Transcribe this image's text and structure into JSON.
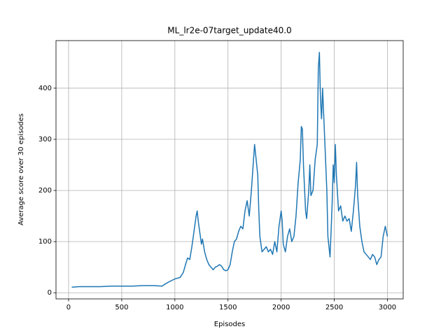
{
  "chart_data": {
    "type": "line",
    "title": "ML_lr2e-07target_update40.0",
    "x_label": "Episodes",
    "y_label": "Average score over 30 episodes",
    "x": [
      30,
      100,
      200,
      300,
      400,
      500,
      600,
      700,
      800,
      880,
      900,
      950,
      1000,
      1050,
      1080,
      1100,
      1120,
      1140,
      1160,
      1180,
      1200,
      1210,
      1220,
      1240,
      1250,
      1260,
      1280,
      1300,
      1320,
      1340,
      1360,
      1380,
      1400,
      1420,
      1440,
      1460,
      1480,
      1500,
      1520,
      1540,
      1560,
      1580,
      1600,
      1620,
      1640,
      1660,
      1680,
      1700,
      1720,
      1740,
      1750,
      1760,
      1780,
      1790,
      1800,
      1820,
      1840,
      1860,
      1880,
      1900,
      1920,
      1940,
      1960,
      1980,
      2000,
      2010,
      2020,
      2040,
      2060,
      2080,
      2100,
      2120,
      2140,
      2160,
      2180,
      2190,
      2200,
      2210,
      2230,
      2240,
      2260,
      2270,
      2280,
      2300,
      2320,
      2340,
      2350,
      2360,
      2370,
      2380,
      2390,
      2400,
      2420,
      2430,
      2440,
      2460,
      2470,
      2480,
      2490,
      2500,
      2510,
      2520,
      2540,
      2560,
      2580,
      2600,
      2620,
      2640,
      2660,
      2680,
      2700,
      2710,
      2720,
      2740,
      2760,
      2780,
      2800,
      2820,
      2840,
      2860,
      2880,
      2900,
      2920,
      2940,
      2960,
      2980,
      3000
    ],
    "values": [
      11,
      12,
      12,
      12,
      13,
      13,
      13,
      14,
      14,
      13,
      16,
      22,
      27,
      30,
      40,
      55,
      68,
      65,
      90,
      120,
      150,
      160,
      140,
      110,
      95,
      105,
      80,
      65,
      55,
      50,
      45,
      50,
      52,
      55,
      52,
      45,
      43,
      45,
      55,
      80,
      100,
      105,
      120,
      130,
      125,
      160,
      180,
      150,
      200,
      260,
      290,
      270,
      230,
      160,
      110,
      80,
      85,
      90,
      80,
      85,
      75,
      100,
      80,
      130,
      160,
      140,
      95,
      80,
      110,
      125,
      100,
      110,
      150,
      215,
      260,
      325,
      320,
      250,
      160,
      145,
      200,
      250,
      190,
      200,
      260,
      290,
      440,
      470,
      380,
      340,
      400,
      350,
      250,
      200,
      110,
      70,
      120,
      175,
      250,
      215,
      290,
      230,
      160,
      170,
      140,
      150,
      140,
      145,
      120,
      160,
      210,
      255,
      190,
      130,
      100,
      80,
      75,
      70,
      65,
      75,
      70,
      55,
      65,
      70,
      110,
      130,
      110
    ],
    "color": "#1f77b4",
    "xlim": [
      -118.5,
      3148.5
    ],
    "ylim": [
      -12,
      493
    ],
    "xticks": [
      0,
      500,
      1000,
      1500,
      2000,
      2500,
      3000
    ],
    "yticks": [
      0,
      100,
      200,
      300,
      400
    ],
    "grid": true
  }
}
